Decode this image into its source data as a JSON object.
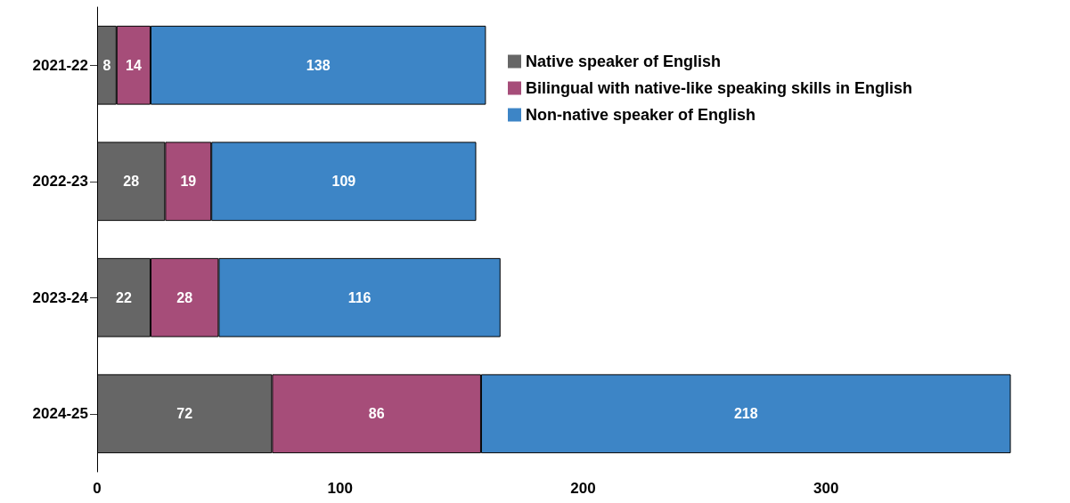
{
  "chart_data": {
    "type": "bar",
    "orientation": "horizontal",
    "stacked": true,
    "data_labels": true,
    "grid": false,
    "legend": "top right",
    "categories": [
      "2021-22",
      "2022-23",
      "2023-24",
      "2024-25"
    ],
    "series": [
      {
        "name": "Native speaker of English",
        "color": "#666666",
        "values": [
          8,
          28,
          22,
          72
        ]
      },
      {
        "name": "Bilingual with native-like speaking skills in English",
        "color": "#a64d79",
        "values": [
          14,
          19,
          28,
          86
        ]
      },
      {
        "name": "Non-native speaker of English",
        "color": "#3d85c6",
        "values": [
          138,
          109,
          116,
          218
        ]
      }
    ],
    "xlim": [
      0,
      400
    ],
    "xticks": [
      0,
      100,
      200,
      300
    ]
  }
}
